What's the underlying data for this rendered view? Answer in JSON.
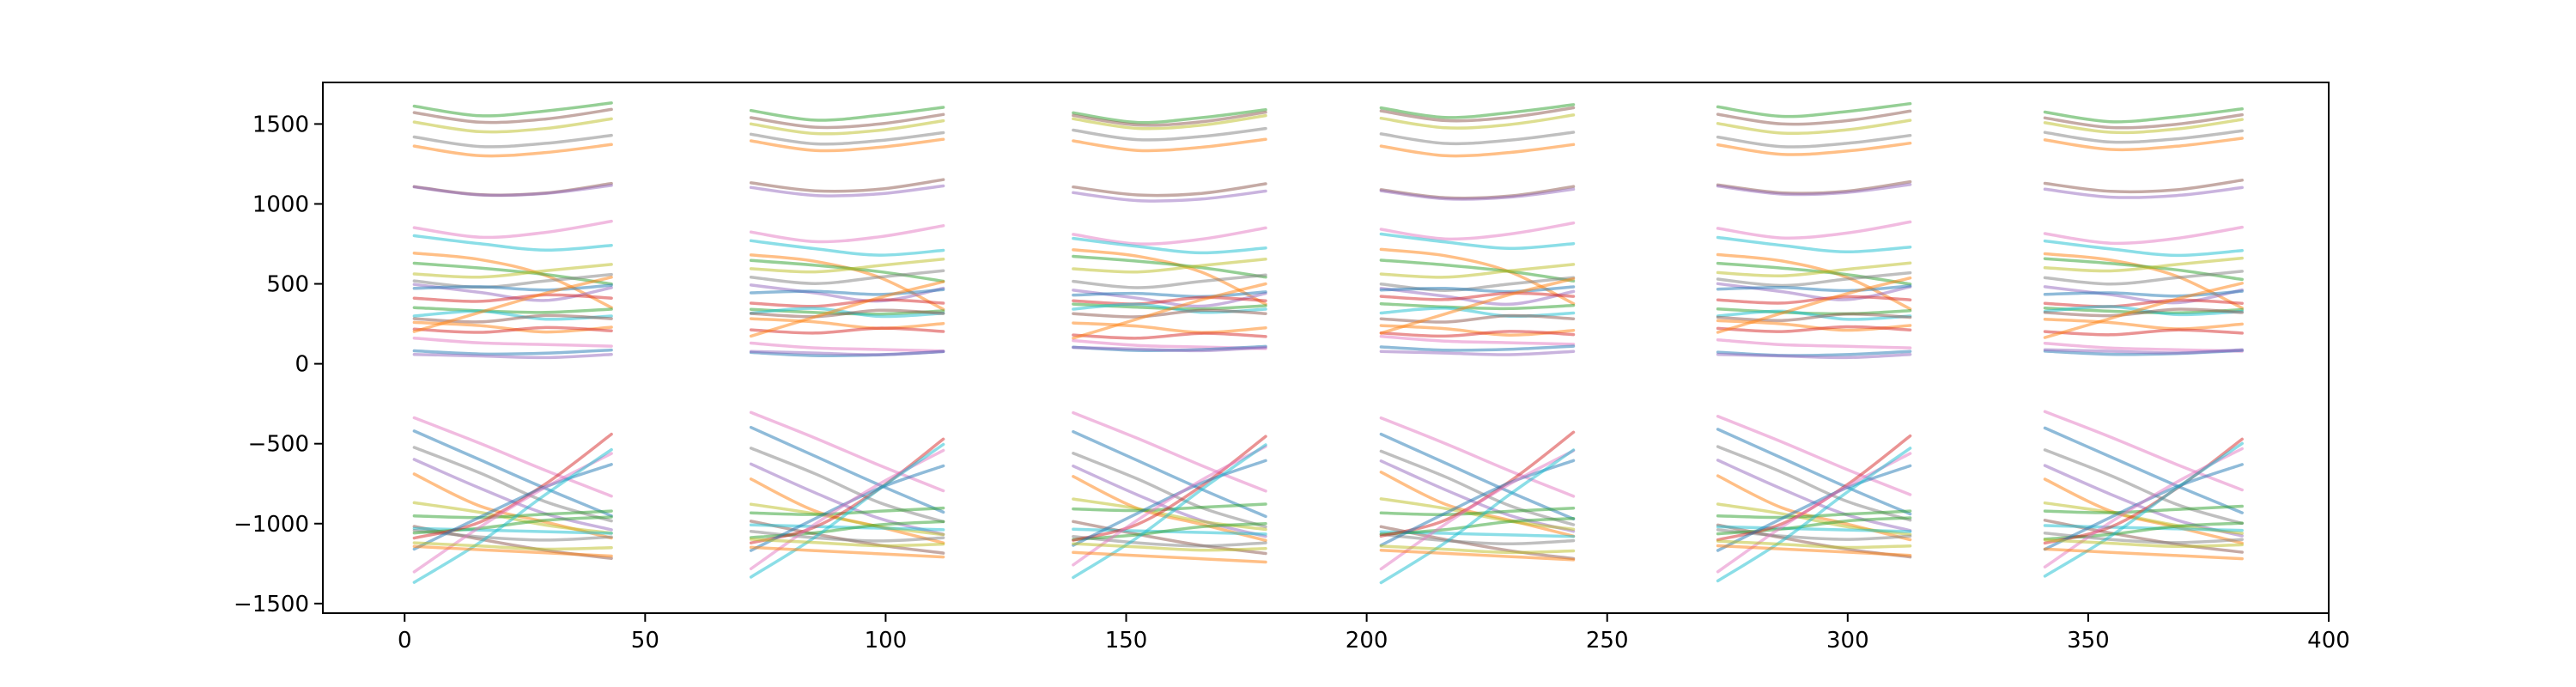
{
  "chart_data": {
    "type": "line",
    "title": "",
    "xlabel": "",
    "ylabel": "",
    "xlim": [
      -17,
      400
    ],
    "ylim": [
      -1560,
      1760
    ],
    "xticks": [
      0,
      50,
      100,
      150,
      200,
      250,
      300,
      350,
      400
    ],
    "yticks": [
      -1500,
      -1000,
      -500,
      0,
      500,
      1000,
      1500
    ],
    "xtick_labels": [
      "0",
      "50",
      "100",
      "150",
      "200",
      "250",
      "300",
      "350",
      "400"
    ],
    "ytick_labels": [
      "−1500",
      "−1000",
      "−500",
      "0",
      "500",
      "1000",
      "1500"
    ],
    "grid": false,
    "legend": "none",
    "line_alpha": 0.5,
    "segments": [
      {
        "x_start": 2,
        "x_end": 43
      },
      {
        "x_start": 72,
        "x_end": 112
      },
      {
        "x_start": 139,
        "x_end": 179
      },
      {
        "x_start": 203,
        "x_end": 243
      },
      {
        "x_start": 273,
        "x_end": 313
      },
      {
        "x_start": 341,
        "x_end": 382
      }
    ],
    "series": [
      {
        "color": "#2ca02c",
        "values": [
          1590,
          1530,
          1560,
          1610
        ]
      },
      {
        "color": "#8c564b",
        "values": [
          1560,
          1500,
          1520,
          1580
        ]
      },
      {
        "color": "#bcbd22",
        "values": [
          1520,
          1460,
          1480,
          1540
        ]
      },
      {
        "color": "#7f7f7f",
        "values": [
          1440,
          1380,
          1400,
          1450
        ]
      },
      {
        "color": "#ff7f0e",
        "values": [
          1380,
          1320,
          1340,
          1390
        ]
      },
      {
        "color": "#8c564b",
        "values": [
          1110,
          1060,
          1070,
          1130
        ]
      },
      {
        "color": "#9467bd",
        "values": [
          1090,
          1040,
          1050,
          1100
        ]
      },
      {
        "color": "#e377c2",
        "values": [
          830,
          770,
          800,
          870
        ]
      },
      {
        "color": "#17becf",
        "values": [
          790,
          740,
          700,
          730
        ]
      },
      {
        "color": "#ff7f0e",
        "values": [
          700,
          660,
          560,
          360
        ]
      },
      {
        "color": "#2ca02c",
        "values": [
          650,
          620,
          580,
          520
        ]
      },
      {
        "color": "#bcbd22",
        "values": [
          580,
          560,
          600,
          640
        ]
      },
      {
        "color": "#7f7f7f",
        "values": [
          520,
          480,
          520,
          560
        ]
      },
      {
        "color": "#9467bd",
        "values": [
          480,
          430,
          380,
          460
        ]
      },
      {
        "color": "#1f77b4",
        "values": [
          450,
          460,
          440,
          470
        ]
      },
      {
        "color": "#d62728",
        "values": [
          400,
          380,
          420,
          400
        ]
      },
      {
        "color": "#2ca02c",
        "values": [
          360,
          340,
          330,
          350
        ]
      },
      {
        "color": "#17becf",
        "values": [
          320,
          350,
          300,
          320
        ]
      },
      {
        "color": "#8c564b",
        "values": [
          300,
          280,
          320,
          300
        ]
      },
      {
        "color": "#ff7f0e",
        "values": [
          260,
          240,
          200,
          230
        ]
      },
      {
        "color": "#d62728",
        "values": [
          200,
          180,
          210,
          190
        ]
      },
      {
        "color": "#ff7f0e",
        "values": [
          180,
          300,
          420,
          520
        ]
      },
      {
        "color": "#e377c2",
        "values": [
          150,
          120,
          110,
          100
        ]
      },
      {
        "color": "#1f77b4",
        "values": [
          90,
          70,
          75,
          95
        ]
      },
      {
        "color": "#9467bd",
        "values": [
          80,
          70,
          60,
          80
        ]
      },
      {
        "color": "#e377c2",
        "values": [
          -320,
          -480,
          -650,
          -810
        ]
      },
      {
        "color": "#1f77b4",
        "values": [
          -420,
          -600,
          -780,
          -950
        ]
      },
      {
        "color": "#7f7f7f",
        "values": [
          -540,
          -700,
          -880,
          -1000
        ]
      },
      {
        "color": "#9467bd",
        "values": [
          -620,
          -800,
          -960,
          -1060
        ]
      },
      {
        "color": "#ff7f0e",
        "values": [
          -700,
          -900,
          -1000,
          -1100
        ]
      },
      {
        "color": "#bcbd22",
        "values": [
          -860,
          -920,
          -1000,
          -1050
        ]
      },
      {
        "color": "#2ca02c",
        "values": [
          -930,
          -940,
          -920,
          -900
        ]
      },
      {
        "color": "#8c564b",
        "values": [
          -1000,
          -1080,
          -1150,
          -1200
        ]
      },
      {
        "color": "#17becf",
        "values": [
          -1030,
          -1040,
          -1050,
          -1060
        ]
      },
      {
        "color": "#7f7f7f",
        "values": [
          -1060,
          -1100,
          -1120,
          -1100
        ]
      },
      {
        "color": "#2ca02c",
        "values": [
          -1080,
          -1050,
          -1000,
          -980
        ]
      },
      {
        "color": "#d62728",
        "values": [
          -1100,
          -1000,
          -760,
          -450
        ]
      },
      {
        "color": "#1f77b4",
        "values": [
          -1150,
          -950,
          -760,
          -620
        ]
      },
      {
        "color": "#e377c2",
        "values": [
          -1280,
          -1000,
          -750,
          -540
        ]
      },
      {
        "color": "#17becf",
        "values": [
          -1350,
          -1100,
          -800,
          -520
        ]
      },
      {
        "color": "#bcbd22",
        "values": [
          -1120,
          -1140,
          -1160,
          -1150
        ]
      },
      {
        "color": "#ff7f0e",
        "values": [
          -1160,
          -1180,
          -1200,
          -1220
        ]
      }
    ]
  }
}
